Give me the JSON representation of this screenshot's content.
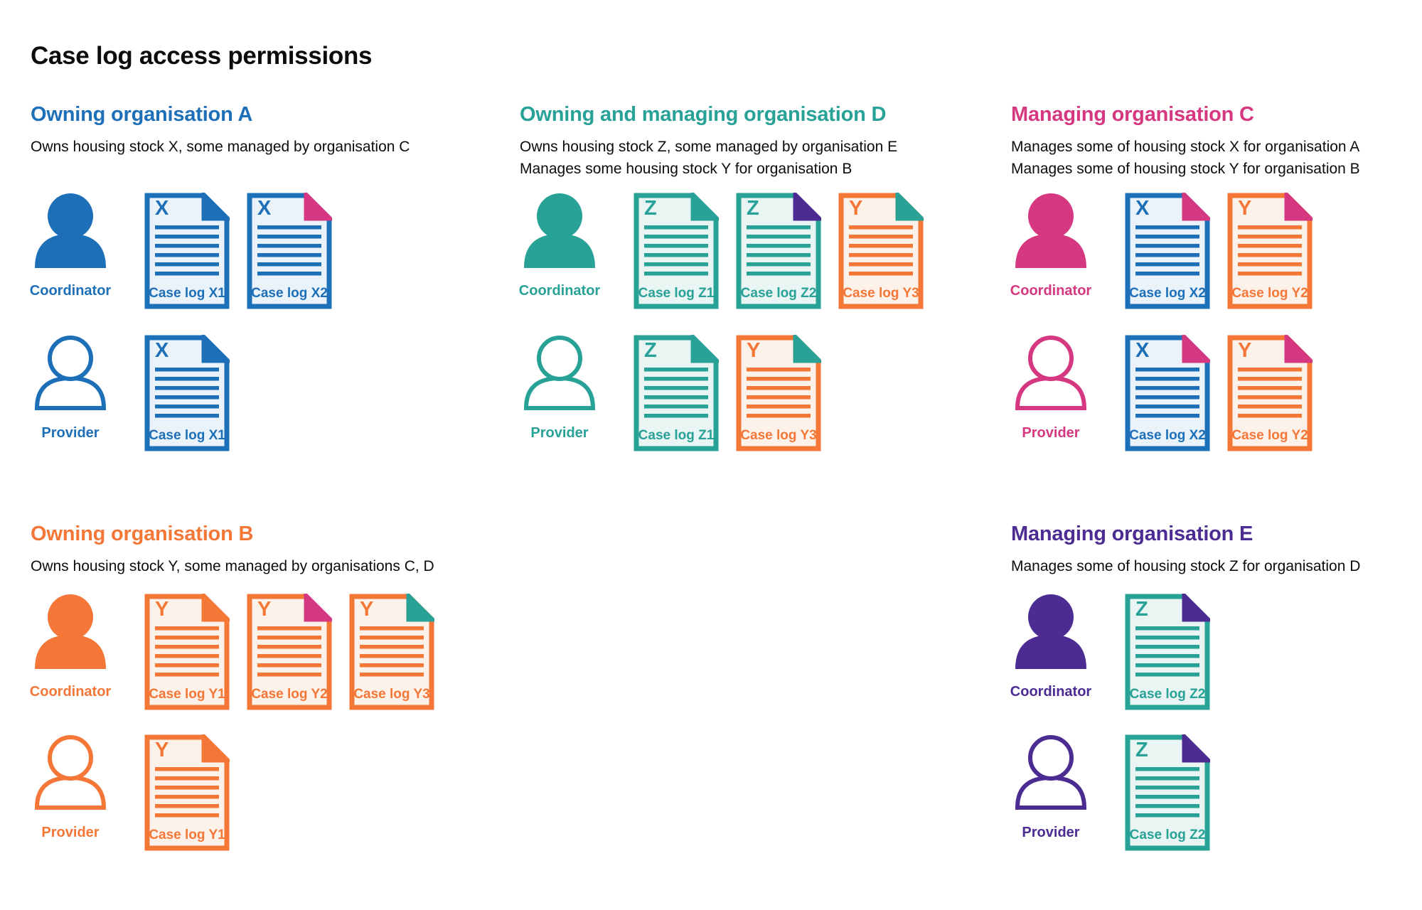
{
  "page": {
    "title": "Case log access permissions"
  },
  "roles": {
    "coordinator": "Coordinator",
    "provider": "Provider"
  },
  "colors": {
    "blue": "#1d70b8",
    "teal": "#28a197",
    "pink": "#d53880",
    "orange": "#f47738",
    "purple": "#4c2c92",
    "text": "#0b0c0c"
  },
  "tints": {
    "blue": "#eaf2fa",
    "teal": "#e9f5f3",
    "orange": "#fdf2ea"
  },
  "sections": [
    {
      "id": "owning-organisation-a",
      "heading": "Owning organisation A",
      "color": "blue",
      "description_lines": [
        "Owns housing stock X, some managed by organisation C"
      ],
      "coordinator_docs": [
        {
          "letter": "X",
          "caption": "Case log X1",
          "doc_color": "blue",
          "fold_color": "blue"
        },
        {
          "letter": "X",
          "caption": "Case log X2",
          "doc_color": "blue",
          "fold_color": "pink"
        }
      ],
      "provider_docs": [
        {
          "letter": "X",
          "caption": "Case log X1",
          "doc_color": "blue",
          "fold_color": "blue"
        }
      ]
    },
    {
      "id": "owning-and-managing-organisation-d",
      "heading": "Owning and managing organisation D",
      "color": "teal",
      "description_lines": [
        "Owns housing stock Z, some managed by organisation E",
        "Manages some housing stock Y for organisation B"
      ],
      "coordinator_docs": [
        {
          "letter": "Z",
          "caption": "Case log Z1",
          "doc_color": "teal",
          "fold_color": "teal"
        },
        {
          "letter": "Z",
          "caption": "Case log Z2",
          "doc_color": "teal",
          "fold_color": "purple"
        },
        {
          "letter": "Y",
          "caption": "Case log Y3",
          "doc_color": "orange",
          "fold_color": "teal"
        }
      ],
      "provider_docs": [
        {
          "letter": "Z",
          "caption": "Case log Z1",
          "doc_color": "teal",
          "fold_color": "teal"
        },
        {
          "letter": "Y",
          "caption": "Case log Y3",
          "doc_color": "orange",
          "fold_color": "teal"
        }
      ]
    },
    {
      "id": "managing-organisation-c",
      "heading": "Managing organisation C",
      "color": "pink",
      "description_lines": [
        "Manages some of housing stock X for organisation A",
        "Manages some of housing stock Y for organisation B"
      ],
      "coordinator_docs": [
        {
          "letter": "X",
          "caption": "Case log X2",
          "doc_color": "blue",
          "fold_color": "pink"
        },
        {
          "letter": "Y",
          "caption": "Case log Y2",
          "doc_color": "orange",
          "fold_color": "pink"
        }
      ],
      "provider_docs": [
        {
          "letter": "X",
          "caption": "Case log X2",
          "doc_color": "blue",
          "fold_color": "pink"
        },
        {
          "letter": "Y",
          "caption": "Case log Y2",
          "doc_color": "orange",
          "fold_color": "pink"
        }
      ]
    },
    {
      "id": "owning-organisation-b",
      "heading": "Owning organisation B",
      "color": "orange",
      "description_lines": [
        "Owns housing stock Y, some managed by organisations C, D"
      ],
      "coordinator_docs": [
        {
          "letter": "Y",
          "caption": "Case log Y1",
          "doc_color": "orange",
          "fold_color": "orange"
        },
        {
          "letter": "Y",
          "caption": "Case log Y2",
          "doc_color": "orange",
          "fold_color": "pink"
        },
        {
          "letter": "Y",
          "caption": "Case log Y3",
          "doc_color": "orange",
          "fold_color": "teal"
        }
      ],
      "provider_docs": [
        {
          "letter": "Y",
          "caption": "Case log Y1",
          "doc_color": "orange",
          "fold_color": "orange"
        }
      ]
    },
    {
      "id": "managing-organisation-e",
      "heading": "Managing organisation E",
      "color": "purple",
      "description_lines": [
        "Manages some of housing stock Z for organisation D"
      ],
      "coordinator_docs": [
        {
          "letter": "Z",
          "caption": "Case log Z2",
          "doc_color": "teal",
          "fold_color": "purple"
        }
      ],
      "provider_docs": [
        {
          "letter": "Z",
          "caption": "Case log Z2",
          "doc_color": "teal",
          "fold_color": "purple"
        }
      ]
    }
  ]
}
